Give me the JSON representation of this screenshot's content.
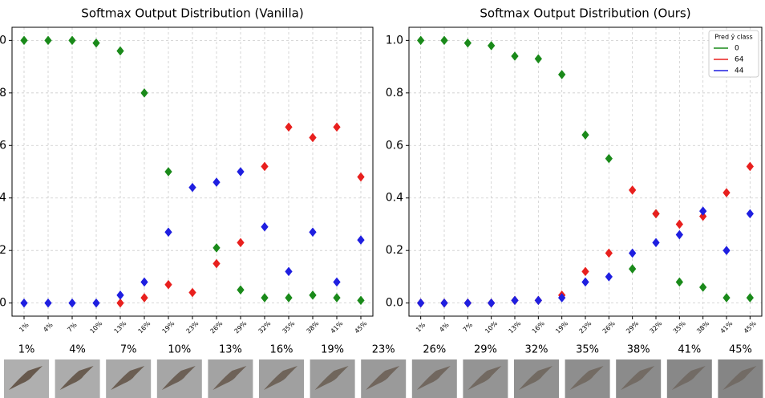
{
  "chart_data": [
    {
      "type": "strip",
      "title": "Softmax Output Distribution (Vanilla)",
      "categories": [
        "1%",
        "4%",
        "7%",
        "10%",
        "13%",
        "16%",
        "19%",
        "23%",
        "26%",
        "29%",
        "32%",
        "35%",
        "38%",
        "41%",
        "45%"
      ],
      "ylim": [
        -0.05,
        1.05
      ],
      "yticks": [
        {
          "value": 0,
          "label": "0.0"
        },
        0.2,
        0.4,
        0.6,
        0.8,
        {
          "value": 1,
          "label": "1.0"
        }
      ],
      "grid": true,
      "series": [
        {
          "color": "#1a8a1a",
          "values": [
            1.0,
            1.0,
            1.0,
            0.99,
            0.96,
            0.8,
            0.5,
            null,
            0.21,
            0.05,
            0.02,
            0.02,
            0.03,
            0.02,
            0.01
          ]
        },
        {
          "color": "#e8201e",
          "values": [
            null,
            null,
            null,
            null,
            0.0,
            0.02,
            0.07,
            0.04,
            0.15,
            0.23,
            0.52,
            0.67,
            0.63,
            0.67,
            0.48
          ]
        },
        {
          "color": "#1f1fe0",
          "values": [
            0.0,
            0.0,
            0.0,
            0.0,
            0.03,
            0.08,
            0.27,
            0.44,
            0.46,
            0.5,
            0.29,
            0.12,
            0.27,
            0.08,
            0.24
          ]
        }
      ]
    },
    {
      "type": "strip",
      "title": "Softmax Output Distribution (Ours)",
      "categories": [
        "1%",
        "4%",
        "7%",
        "10%",
        "13%",
        "16%",
        "19%",
        "23%",
        "26%",
        "29%",
        "32%",
        "35%",
        "38%",
        "41%",
        "45%"
      ],
      "ylim": [
        -0.05,
        1.05
      ],
      "yticks": [
        {
          "value": 0,
          "label": "0.0"
        },
        0.2,
        0.4,
        0.6,
        0.8,
        {
          "value": 1,
          "label": "1.0"
        }
      ],
      "grid": true,
      "legend": "upper right",
      "legend_title": "Pred ŷ class",
      "series": [
        {
          "name": "0",
          "color": "#1a8a1a",
          "values": [
            1.0,
            1.0,
            0.99,
            0.98,
            0.94,
            0.93,
            0.87,
            0.64,
            0.55,
            0.13,
            0.34,
            0.08,
            0.06,
            0.02,
            0.02
          ]
        },
        {
          "name": "64",
          "color": "#e8201e",
          "values": [
            0.0,
            0.0,
            0.0,
            0.0,
            0.01,
            0.01,
            0.03,
            0.12,
            0.19,
            0.43,
            0.34,
            0.3,
            0.33,
            0.42,
            0.52
          ]
        },
        {
          "name": "44",
          "color": "#1f1fe0",
          "values": [
            0.0,
            0.0,
            0.0,
            0.0,
            0.01,
            0.01,
            0.02,
            0.08,
            0.1,
            0.19,
            0.23,
            0.26,
            0.35,
            0.2,
            0.34
          ]
        }
      ]
    }
  ],
  "thumbnails": {
    "labels": [
      "1%",
      "4%",
      "7%",
      "10%",
      "13%",
      "16%",
      "19%",
      "23%",
      "26%",
      "29%",
      "32%",
      "35%",
      "38%",
      "41%",
      "45%"
    ]
  }
}
